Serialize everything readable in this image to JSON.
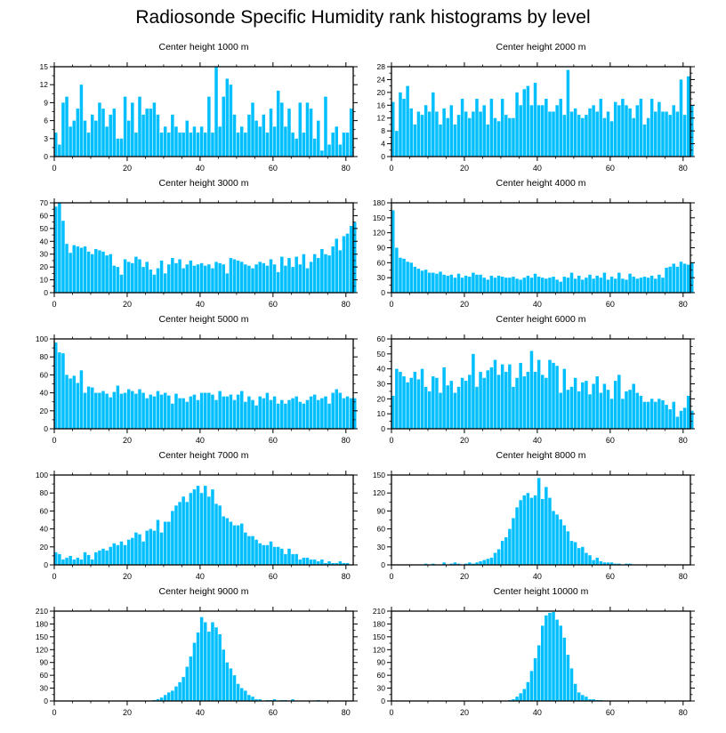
{
  "title": "Radiosonde Specific Humidity rank histograms by level",
  "colors": {
    "bar": "#00bfff",
    "axis": "#000000"
  },
  "chart_data": [
    {
      "type": "bar",
      "title": "Center height 1000 m",
      "xlim": [
        0,
        82
      ],
      "ylim": [
        0,
        15
      ],
      "xticks": [
        0,
        20,
        40,
        60,
        80
      ],
      "yticks": [
        0,
        3,
        6,
        9,
        12,
        15
      ],
      "values": [
        4,
        2,
        9,
        10,
        5,
        6,
        8,
        12,
        6,
        4,
        7,
        6,
        9,
        8,
        5,
        7,
        8,
        3,
        3,
        10,
        6,
        9,
        4,
        10,
        7,
        8,
        8,
        9,
        7,
        4,
        5,
        4,
        7,
        5,
        4,
        4,
        6,
        4,
        5,
        4,
        5,
        4,
        10,
        4,
        15,
        5,
        10,
        13,
        12,
        7,
        4,
        5,
        4,
        7,
        9,
        6,
        5,
        7,
        4,
        8,
        5,
        11,
        9,
        5,
        8,
        4,
        3,
        9,
        4,
        9,
        8,
        3,
        6,
        1,
        10,
        2,
        4,
        5,
        2,
        4,
        4,
        8
      ]
    },
    {
      "type": "bar",
      "title": "Center height 2000 m",
      "xlim": [
        0,
        82
      ],
      "ylim": [
        0,
        28
      ],
      "xticks": [
        0,
        20,
        40,
        60,
        80
      ],
      "yticks": [
        0,
        4,
        8,
        12,
        16,
        20,
        24,
        28
      ],
      "values": [
        17,
        8,
        20,
        18,
        22,
        15,
        10,
        14,
        13,
        16,
        14,
        20,
        14,
        10,
        15,
        12,
        16,
        10,
        13,
        18,
        14,
        12,
        14,
        18,
        14,
        16,
        10,
        18,
        12,
        11,
        18,
        13,
        12,
        12,
        20,
        16,
        21,
        22,
        16,
        23,
        16,
        16,
        18,
        14,
        14,
        16,
        18,
        13,
        27,
        14,
        15,
        13,
        12,
        13,
        15,
        16,
        14,
        18,
        12,
        14,
        11,
        17,
        16,
        18,
        16,
        15,
        12,
        16,
        18,
        10,
        12,
        18,
        14,
        17,
        14,
        14,
        13,
        16,
        14,
        24,
        13,
        25,
        16
      ]
    },
    {
      "type": "bar",
      "title": "Center height 3000 m",
      "xlim": [
        0,
        82
      ],
      "ylim": [
        0,
        70
      ],
      "xticks": [
        0,
        20,
        40,
        60,
        80
      ],
      "yticks": [
        0,
        10,
        20,
        30,
        40,
        50,
        60,
        70
      ],
      "values": [
        67,
        70,
        56,
        38,
        31,
        37,
        36,
        35,
        36,
        32,
        30,
        34,
        33,
        32,
        29,
        30,
        21,
        20,
        14,
        26,
        24,
        23,
        28,
        26,
        20,
        24,
        18,
        14,
        19,
        25,
        15,
        22,
        27,
        23,
        26,
        19,
        22,
        25,
        21,
        22,
        23,
        21,
        22,
        19,
        24,
        23,
        22,
        15,
        27,
        26,
        25,
        24,
        22,
        21,
        19,
        22,
        24,
        23,
        21,
        26,
        22,
        16,
        28,
        21,
        27,
        20,
        28,
        22,
        30,
        19,
        24,
        30,
        27,
        34,
        30,
        29,
        36,
        42,
        33,
        44,
        46,
        52,
        55
      ]
    },
    {
      "type": "bar",
      "title": "Center height 4000 m",
      "xlim": [
        0,
        82
      ],
      "ylim": [
        0,
        180
      ],
      "xticks": [
        0,
        20,
        40,
        60,
        80
      ],
      "yticks": [
        0,
        30,
        60,
        90,
        120,
        150,
        180
      ],
      "values": [
        165,
        90,
        70,
        68,
        62,
        60,
        52,
        48,
        44,
        46,
        40,
        40,
        38,
        42,
        36,
        34,
        36,
        30,
        38,
        30,
        34,
        32,
        40,
        36,
        36,
        30,
        26,
        34,
        30,
        34,
        32,
        30,
        30,
        32,
        28,
        26,
        30,
        34,
        30,
        38,
        32,
        30,
        28,
        30,
        32,
        26,
        22,
        32,
        30,
        40,
        28,
        34,
        26,
        30,
        36,
        28,
        34,
        30,
        40,
        26,
        32,
        28,
        40,
        28,
        26,
        38,
        32,
        28,
        30,
        32,
        30,
        34,
        28,
        36,
        30,
        50,
        52,
        58,
        52,
        62,
        58,
        56,
        60
      ]
    },
    {
      "type": "bar",
      "title": "Center height 5000 m",
      "xlim": [
        0,
        82
      ],
      "ylim": [
        0,
        100
      ],
      "xticks": [
        0,
        20,
        40,
        60,
        80
      ],
      "yticks": [
        0,
        20,
        40,
        60,
        80,
        100
      ],
      "values": [
        96,
        85,
        84,
        60,
        56,
        59,
        51,
        65,
        40,
        47,
        46,
        40,
        40,
        42,
        39,
        35,
        41,
        48,
        39,
        40,
        44,
        42,
        39,
        44,
        40,
        34,
        38,
        36,
        42,
        38,
        40,
        37,
        28,
        39,
        34,
        34,
        30,
        36,
        38,
        32,
        40,
        40,
        40,
        38,
        32,
        42,
        36,
        36,
        38,
        32,
        38,
        42,
        30,
        36,
        32,
        26,
        36,
        34,
        40,
        32,
        36,
        28,
        32,
        28,
        32,
        34,
        36,
        30,
        28,
        32,
        36,
        38,
        32,
        34,
        36,
        28,
        40,
        44,
        40,
        34,
        36,
        34,
        34
      ]
    },
    {
      "type": "bar",
      "title": "Center height 6000 m",
      "xlim": [
        0,
        82
      ],
      "ylim": [
        0,
        60
      ],
      "xticks": [
        0,
        20,
        40,
        60,
        80
      ],
      "yticks": [
        0,
        10,
        20,
        30,
        40,
        50,
        60
      ],
      "values": [
        22,
        40,
        38,
        35,
        31,
        34,
        38,
        33,
        40,
        28,
        25,
        35,
        34,
        24,
        41,
        29,
        32,
        24,
        28,
        34,
        32,
        36,
        50,
        28,
        38,
        34,
        39,
        41,
        46,
        36,
        43,
        38,
        43,
        28,
        34,
        44,
        35,
        38,
        52,
        38,
        46,
        36,
        34,
        46,
        44,
        42,
        24,
        40,
        26,
        28,
        34,
        25,
        31,
        32,
        23,
        30,
        35,
        24,
        30,
        26,
        20,
        32,
        36,
        20,
        25,
        26,
        30,
        24,
        22,
        18,
        18,
        20,
        18,
        20,
        19,
        16,
        13,
        18,
        8,
        12,
        14,
        22,
        12
      ]
    },
    {
      "type": "bar",
      "title": "Center height 7000 m",
      "xlim": [
        0,
        82
      ],
      "ylim": [
        0,
        100
      ],
      "xticks": [
        0,
        20,
        40,
        60,
        80
      ],
      "yticks": [
        0,
        20,
        40,
        60,
        80,
        100
      ],
      "values": [
        14,
        12,
        6,
        8,
        10,
        6,
        8,
        6,
        14,
        11,
        6,
        14,
        16,
        18,
        16,
        20,
        24,
        22,
        26,
        22,
        28,
        30,
        36,
        34,
        26,
        38,
        40,
        38,
        50,
        36,
        48,
        48,
        60,
        66,
        70,
        76,
        70,
        80,
        84,
        88,
        80,
        88,
        76,
        84,
        68,
        66,
        54,
        52,
        48,
        44,
        44,
        46,
        36,
        32,
        32,
        28,
        24,
        22,
        22,
        26,
        20,
        20,
        18,
        12,
        18,
        12,
        12,
        6,
        8,
        8,
        6,
        6,
        4,
        6,
        2,
        4,
        2,
        2,
        4,
        2,
        2,
        0,
        0
      ]
    },
    {
      "type": "bar",
      "title": "Center height 8000 m",
      "xlim": [
        0,
        82
      ],
      "ylim": [
        0,
        150
      ],
      "xticks": [
        0,
        20,
        40,
        60,
        80
      ],
      "yticks": [
        0,
        30,
        60,
        90,
        120,
        150
      ],
      "values": [
        0,
        0,
        0,
        0,
        0,
        0,
        0,
        0,
        0,
        2,
        0,
        2,
        0,
        0,
        4,
        0,
        2,
        4,
        2,
        0,
        2,
        4,
        2,
        4,
        6,
        8,
        10,
        12,
        20,
        26,
        40,
        46,
        60,
        78,
        96,
        108,
        116,
        120,
        112,
        116,
        145,
        110,
        130,
        112,
        90,
        84,
        76,
        66,
        56,
        40,
        38,
        28,
        30,
        20,
        16,
        8,
        12,
        6,
        4,
        4,
        4,
        2,
        2,
        0,
        2,
        2,
        0,
        0,
        0,
        0,
        0,
        0,
        0,
        0,
        0,
        0,
        0,
        0,
        0,
        0,
        0,
        0,
        0
      ]
    },
    {
      "type": "bar",
      "title": "Center height 9000 m",
      "xlim": [
        0,
        82
      ],
      "ylim": [
        0,
        210
      ],
      "xticks": [
        0,
        20,
        40,
        60,
        80
      ],
      "yticks": [
        0,
        30,
        60,
        90,
        120,
        150,
        180,
        210
      ],
      "values": [
        0,
        0,
        0,
        0,
        0,
        0,
        0,
        0,
        0,
        0,
        0,
        0,
        0,
        0,
        0,
        0,
        0,
        0,
        0,
        0,
        0,
        0,
        0,
        0,
        0,
        0,
        0,
        2,
        4,
        8,
        14,
        20,
        24,
        34,
        44,
        56,
        80,
        104,
        136,
        160,
        196,
        184,
        162,
        184,
        172,
        156,
        120,
        90,
        76,
        60,
        40,
        30,
        24,
        14,
        10,
        4,
        4,
        0,
        2,
        2,
        4,
        0,
        2,
        2,
        0,
        4,
        0,
        0,
        0,
        0,
        0,
        0,
        2,
        0,
        0,
        0,
        0,
        0,
        0,
        0,
        0,
        0,
        0
      ]
    },
    {
      "type": "bar",
      "title": "Center height 10000 m",
      "xlim": [
        0,
        82
      ],
      "ylim": [
        0,
        210
      ],
      "xticks": [
        0,
        20,
        40,
        60,
        80
      ],
      "yticks": [
        0,
        30,
        60,
        90,
        120,
        150,
        180,
        210
      ],
      "values": [
        0,
        0,
        0,
        0,
        0,
        0,
        0,
        0,
        0,
        0,
        0,
        0,
        0,
        0,
        0,
        0,
        0,
        0,
        0,
        0,
        0,
        0,
        0,
        0,
        0,
        0,
        0,
        0,
        0,
        0,
        0,
        0,
        2,
        4,
        10,
        18,
        28,
        44,
        70,
        100,
        130,
        176,
        200,
        206,
        208,
        190,
        176,
        148,
        108,
        76,
        40,
        20,
        14,
        10,
        4,
        4,
        2,
        2,
        0,
        0,
        0,
        0,
        0,
        0,
        0,
        0,
        0,
        0,
        0,
        0,
        0,
        0,
        0,
        0,
        0,
        0,
        0,
        0,
        0,
        0,
        0,
        0,
        0
      ]
    }
  ]
}
